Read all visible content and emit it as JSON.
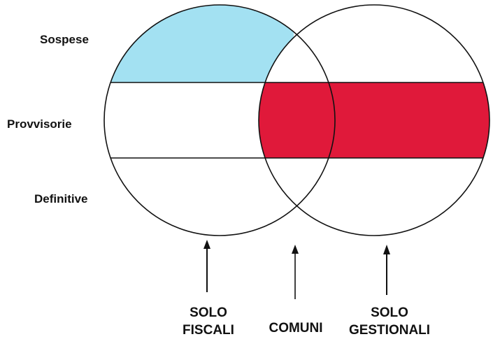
{
  "rows": {
    "sospese": "Sospese",
    "provvisorie": "Provvisorie",
    "definitive": "Definitive"
  },
  "columns": {
    "solo_fiscali": [
      "SOLO",
      "FISCALI"
    ],
    "comuni": "COMUNI",
    "solo_gestionali": [
      "SOLO",
      "GESTIONALI"
    ]
  },
  "colors": {
    "sospese_fiscali_fill": "#A3E1F2",
    "provvisorie_highlight_fill": "#E0193A",
    "outline": "#111111",
    "background": "#FFFFFF"
  },
  "icons": [
    "arrow-up-icon",
    "arrow-up-icon",
    "arrow-up-icon"
  ]
}
